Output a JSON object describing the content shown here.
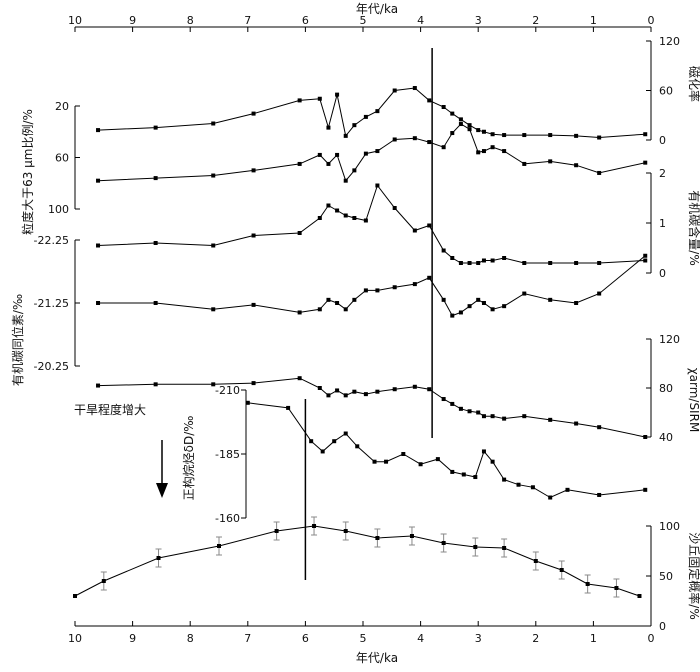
{
  "chart_data": {
    "type": "line",
    "x_axis": {
      "label": "年代/ka",
      "range": [
        10,
        0
      ],
      "ticks": [
        10,
        9,
        8,
        7,
        6,
        5,
        4,
        3,
        2,
        1,
        0
      ],
      "top_ticks": [
        10,
        9,
        8,
        7,
        6,
        5,
        4,
        3,
        2,
        1,
        0
      ]
    },
    "panels": [
      {
        "id": "magnetic-susceptibility",
        "ylabel": "磁化率",
        "side": "right",
        "ylim": [
          0,
          120
        ],
        "ticks": [
          0,
          60,
          120
        ],
        "x": [
          9.6,
          8.6,
          7.6,
          6.9,
          6.1,
          5.75,
          5.6,
          5.45,
          5.3,
          5.15,
          4.95,
          4.75,
          4.45,
          4.1,
          3.85,
          3.6,
          3.45,
          3.3,
          3.15,
          3.0,
          2.9,
          2.75,
          2.55,
          2.2,
          1.75,
          1.3,
          0.9,
          0.1
        ],
        "y": [
          12,
          15,
          20,
          32,
          48,
          50,
          15,
          55,
          5,
          18,
          28,
          35,
          60,
          63,
          48,
          40,
          32,
          25,
          18,
          12,
          10,
          7,
          6,
          6,
          6,
          5,
          3,
          7
        ]
      },
      {
        "id": "organic-carbon",
        "ylabel": "有机碳含量/%",
        "side": "right",
        "ylim": [
          0,
          2
        ],
        "ticks": [
          0,
          1,
          2
        ],
        "x": [
          9.6,
          8.6,
          7.6,
          6.9,
          6.1,
          5.75,
          5.6,
          5.45,
          5.3,
          5.15,
          4.95,
          4.75,
          4.45,
          4.1,
          3.85,
          3.6,
          3.45,
          3.3,
          3.15,
          3.0,
          2.9,
          2.75,
          2.55,
          2.2,
          1.75,
          1.3,
          0.9,
          0.1
        ],
        "y": [
          0.55,
          0.6,
          0.55,
          0.75,
          0.8,
          1.1,
          1.35,
          1.25,
          1.15,
          1.1,
          1.05,
          1.75,
          1.3,
          0.85,
          0.95,
          0.45,
          0.3,
          0.2,
          0.2,
          0.2,
          0.25,
          0.25,
          0.3,
          0.2,
          0.2,
          0.2,
          0.2,
          0.25
        ]
      },
      {
        "id": "grain-size",
        "ylabel": "粒度大于63 μm比例/%",
        "side": "left",
        "ylim": [
          100,
          20
        ],
        "ticks": [
          20,
          60,
          100
        ],
        "x": [
          9.6,
          8.6,
          7.6,
          6.9,
          6.1,
          5.75,
          5.6,
          5.45,
          5.3,
          5.15,
          4.95,
          4.75,
          4.45,
          4.1,
          3.85,
          3.6,
          3.45,
          3.3,
          3.15,
          3.0,
          2.9,
          2.75,
          2.55,
          2.2,
          1.75,
          1.3,
          0.9,
          0.1
        ],
        "y": [
          78,
          76,
          74,
          70,
          65,
          58,
          65,
          58,
          78,
          70,
          57,
          55,
          46,
          45,
          48,
          52,
          41,
          34,
          38,
          56,
          55,
          52,
          55,
          65,
          63,
          66,
          72,
          64
        ]
      },
      {
        "id": "organic-carbon-isotope",
        "ylabel": "有机碳同位素/‰",
        "side": "left",
        "ylim": [
          -20.25,
          -22.25
        ],
        "ticks": [
          -22.25,
          -21.25,
          -20.25
        ],
        "x": [
          9.6,
          8.6,
          7.6,
          6.9,
          6.1,
          5.75,
          5.6,
          5.45,
          5.3,
          5.15,
          4.95,
          4.75,
          4.45,
          4.1,
          3.85,
          3.6,
          3.45,
          3.3,
          3.15,
          3.0,
          2.9,
          2.75,
          2.55,
          2.2,
          1.75,
          1.3,
          0.9,
          0.1
        ],
        "y": [
          -21.25,
          -21.25,
          -21.15,
          -21.22,
          -21.1,
          -21.15,
          -21.3,
          -21.25,
          -21.15,
          -21.3,
          -21.45,
          -21.45,
          -21.5,
          -21.55,
          -21.65,
          -21.3,
          -21.05,
          -21.1,
          -21.2,
          -21.3,
          -21.25,
          -21.15,
          -21.2,
          -21.4,
          -21.3,
          -21.25,
          -21.4,
          -22.0
        ]
      },
      {
        "id": "chi-arm-sirm",
        "ylabel": "χarm/SIRM",
        "side": "right",
        "ylim": [
          40,
          120
        ],
        "ticks": [
          40,
          80,
          120
        ],
        "x": [
          9.6,
          8.6,
          7.6,
          6.9,
          6.1,
          5.75,
          5.6,
          5.45,
          5.3,
          5.15,
          4.95,
          4.75,
          4.45,
          4.1,
          3.85,
          3.6,
          3.45,
          3.3,
          3.15,
          3.0,
          2.9,
          2.75,
          2.55,
          2.2,
          1.75,
          1.3,
          0.9,
          0.1
        ],
        "y": [
          82,
          83,
          83,
          84,
          88,
          80,
          74,
          78,
          74,
          77,
          75,
          77,
          79,
          81,
          79,
          71,
          67,
          63,
          61,
          60,
          57,
          57,
          55,
          57,
          54,
          51,
          48,
          40
        ]
      },
      {
        "id": "n-alkane-deuterium",
        "ylabel": "正构烷烃δD/‰",
        "side": "left",
        "ylim": [
          -160,
          -210
        ],
        "ticks": [
          -210,
          -185,
          -160
        ],
        "x": [
          7.0,
          6.3,
          5.9,
          5.7,
          5.5,
          5.3,
          5.1,
          4.8,
          4.6,
          4.3,
          4.0,
          3.7,
          3.45,
          3.25,
          3.05,
          2.9,
          2.75,
          2.55,
          2.3,
          2.05,
          1.75,
          1.45,
          0.9,
          0.1
        ],
        "y": [
          -205,
          -203,
          -190,
          -186,
          -190,
          -193,
          -188,
          -182,
          -182,
          -185,
          -181,
          -183,
          -178,
          -177,
          -176,
          -186,
          -182,
          -175,
          -173,
          -172,
          -168,
          -171,
          -169,
          -171
        ]
      },
      {
        "id": "dune-fixation",
        "ylabel": "沙丘固定概率/%",
        "side": "right",
        "ylim": [
          0,
          100
        ],
        "ticks": [
          0,
          50,
          100
        ],
        "x": [
          10.0,
          9.5,
          8.55,
          7.5,
          6.5,
          5.85,
          5.3,
          4.75,
          4.15,
          3.6,
          3.05,
          2.55,
          2.0,
          1.55,
          1.1,
          0.6,
          0.2
        ],
        "y": [
          30,
          45,
          68,
          80,
          95,
          100,
          95,
          88,
          90,
          83,
          79,
          78,
          65,
          56,
          42,
          38,
          30
        ]
      }
    ],
    "vertical_lines_x": [
      3.8,
      6.0
    ],
    "annotations": {
      "arrow_label": "干旱程度增大"
    }
  }
}
